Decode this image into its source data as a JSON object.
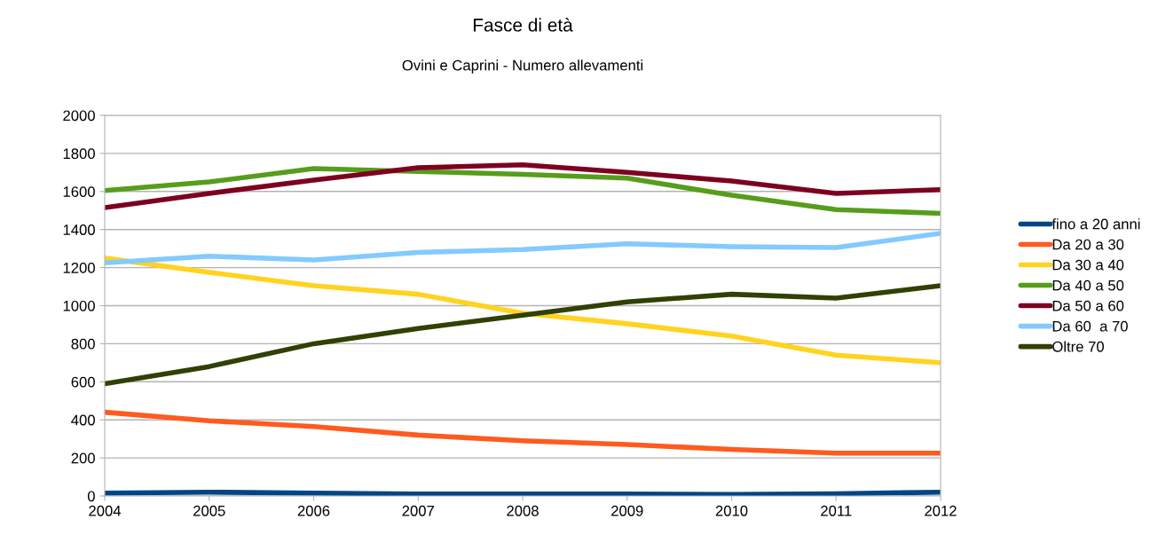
{
  "chart_data": {
    "type": "line",
    "title": "Fasce di età",
    "subtitle": "Ovini e Caprini - Numero allevamenti",
    "x": [
      2004,
      2005,
      2006,
      2007,
      2008,
      2009,
      2010,
      2011,
      2012
    ],
    "xlim": [
      2004,
      2012
    ],
    "xticks": [
      2004,
      2005,
      2006,
      2007,
      2008,
      2009,
      2010,
      2011,
      2012
    ],
    "ylim": [
      0,
      2000
    ],
    "yticks": [
      0,
      200,
      400,
      600,
      800,
      1000,
      1200,
      1400,
      1600,
      1800,
      2000
    ],
    "grid": "y",
    "legend": "right",
    "marker": "none",
    "line_style": "solid",
    "series": [
      {
        "name": "fino a 20 anni",
        "color": "#004586",
        "values": [
          15,
          20,
          15,
          10,
          10,
          10,
          8,
          12,
          20
        ]
      },
      {
        "name": "Da 20 a 30",
        "color": "#ff5a1f",
        "values": [
          440,
          395,
          365,
          320,
          290,
          270,
          245,
          225,
          225
        ]
      },
      {
        "name": "Da 30 a 40",
        "color": "#ffd320",
        "values": [
          1250,
          1175,
          1105,
          1060,
          960,
          905,
          840,
          740,
          700
        ]
      },
      {
        "name": "Da 40 a 50",
        "color": "#579d1c",
        "values": [
          1605,
          1650,
          1720,
          1705,
          1690,
          1670,
          1580,
          1505,
          1485
        ]
      },
      {
        "name": "Da 50 a 60",
        "color": "#7e0021",
        "values": [
          1515,
          1590,
          1660,
          1725,
          1740,
          1700,
          1655,
          1590,
          1610
        ]
      },
      {
        "name": "Da 60  a 70",
        "color": "#83caff",
        "values": [
          1225,
          1260,
          1240,
          1280,
          1295,
          1325,
          1310,
          1305,
          1380
        ]
      },
      {
        "name": "Oltre 70",
        "color": "#314004",
        "values": [
          590,
          680,
          800,
          880,
          950,
          1020,
          1060,
          1040,
          1105
        ]
      }
    ]
  }
}
